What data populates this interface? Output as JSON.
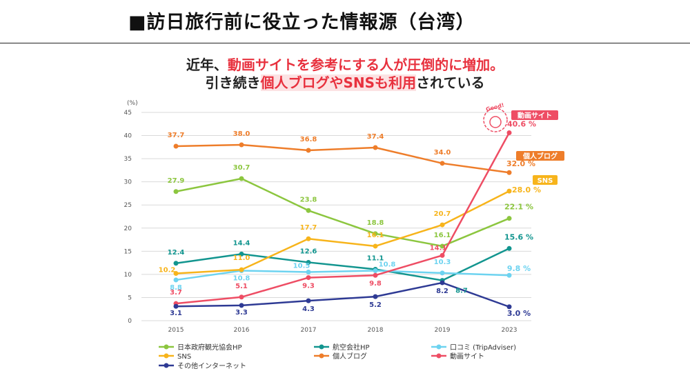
{
  "header": {
    "title": "■訪日旅行前に役立った情報源（台湾）",
    "line1_prefix": "近年、",
    "line1_red": "動画サイトを参考にする人が圧倒的に増加。",
    "line2_prefix": "引き続き",
    "line2_highlight": "個人ブログやSNSも利用",
    "line2_suffix": "されている"
  },
  "chart_data": {
    "type": "line",
    "unit_label": "(%)",
    "categories": [
      "2015",
      "2016",
      "2017",
      "2018",
      "2019",
      "2023"
    ],
    "ylim": [
      0,
      45
    ],
    "yticks": [
      0,
      5,
      10,
      15,
      20,
      25,
      30,
      35,
      40,
      45
    ],
    "grid": true,
    "legend_position": "bottom",
    "series": [
      {
        "name": "日本政府観光協会HP",
        "color": "#8cc63f",
        "values": [
          27.9,
          30.7,
          23.8,
          18.8,
          16.1,
          22.1
        ],
        "labels": [
          "27.9",
          "30.7",
          "23.8",
          "18.8",
          "16.1",
          "22.1 %"
        ]
      },
      {
        "name": "航空会社HP",
        "color": "#12958f",
        "values": [
          12.4,
          14.4,
          12.6,
          11.1,
          8.7,
          15.6
        ],
        "labels": [
          "12.4",
          "14.4",
          "12.6",
          "11.1",
          "8.7",
          "15.6 %"
        ]
      },
      {
        "name": "口コミ (TripAdviser)",
        "color": "#6dd3f0",
        "values": [
          8.8,
          10.8,
          10.5,
          10.8,
          10.3,
          9.8
        ],
        "labels": [
          "8.8",
          "10.8",
          "10.5",
          "10.8",
          "10.3",
          "9.8 %"
        ]
      },
      {
        "name": "SNS",
        "color": "#f7b41b",
        "values": [
          10.2,
          11.0,
          17.7,
          16.1,
          20.7,
          28.0
        ],
        "labels": [
          "10.2",
          "11.0",
          "17.7",
          "16.1",
          "20.7",
          "28.0 %"
        ]
      },
      {
        "name": "個人ブログ",
        "color": "#ee7d2a",
        "values": [
          37.7,
          38.0,
          36.8,
          37.4,
          34.0,
          32.0
        ],
        "labels": [
          "37.7",
          "38.0",
          "36.8",
          "37.4",
          "34.0",
          "32.0 %"
        ]
      },
      {
        "name": "動画サイト",
        "color": "#ee4d64",
        "values": [
          3.7,
          5.1,
          9.3,
          9.8,
          14.1,
          40.6
        ],
        "labels": [
          "3.7",
          "5.1",
          "9.3",
          "9.8",
          "14.1",
          "40.6 %"
        ]
      },
      {
        "name": "その他インターネット",
        "color": "#2e3a94",
        "values": [
          3.1,
          3.3,
          4.3,
          5.2,
          8.2,
          3.0
        ],
        "labels": [
          "3.1",
          "3.3",
          "4.3",
          "5.2",
          "8.2",
          "3.0 %"
        ]
      }
    ],
    "tags": [
      {
        "series": "動画サイト",
        "text": "動画サイト",
        "color": "#ee4d64"
      },
      {
        "series": "個人ブログ",
        "text": "個人ブログ",
        "color": "#ee7d2a"
      },
      {
        "series": "SNS",
        "text": "SNS",
        "color": "#f7b41b"
      }
    ],
    "badge_text": "Good!"
  }
}
